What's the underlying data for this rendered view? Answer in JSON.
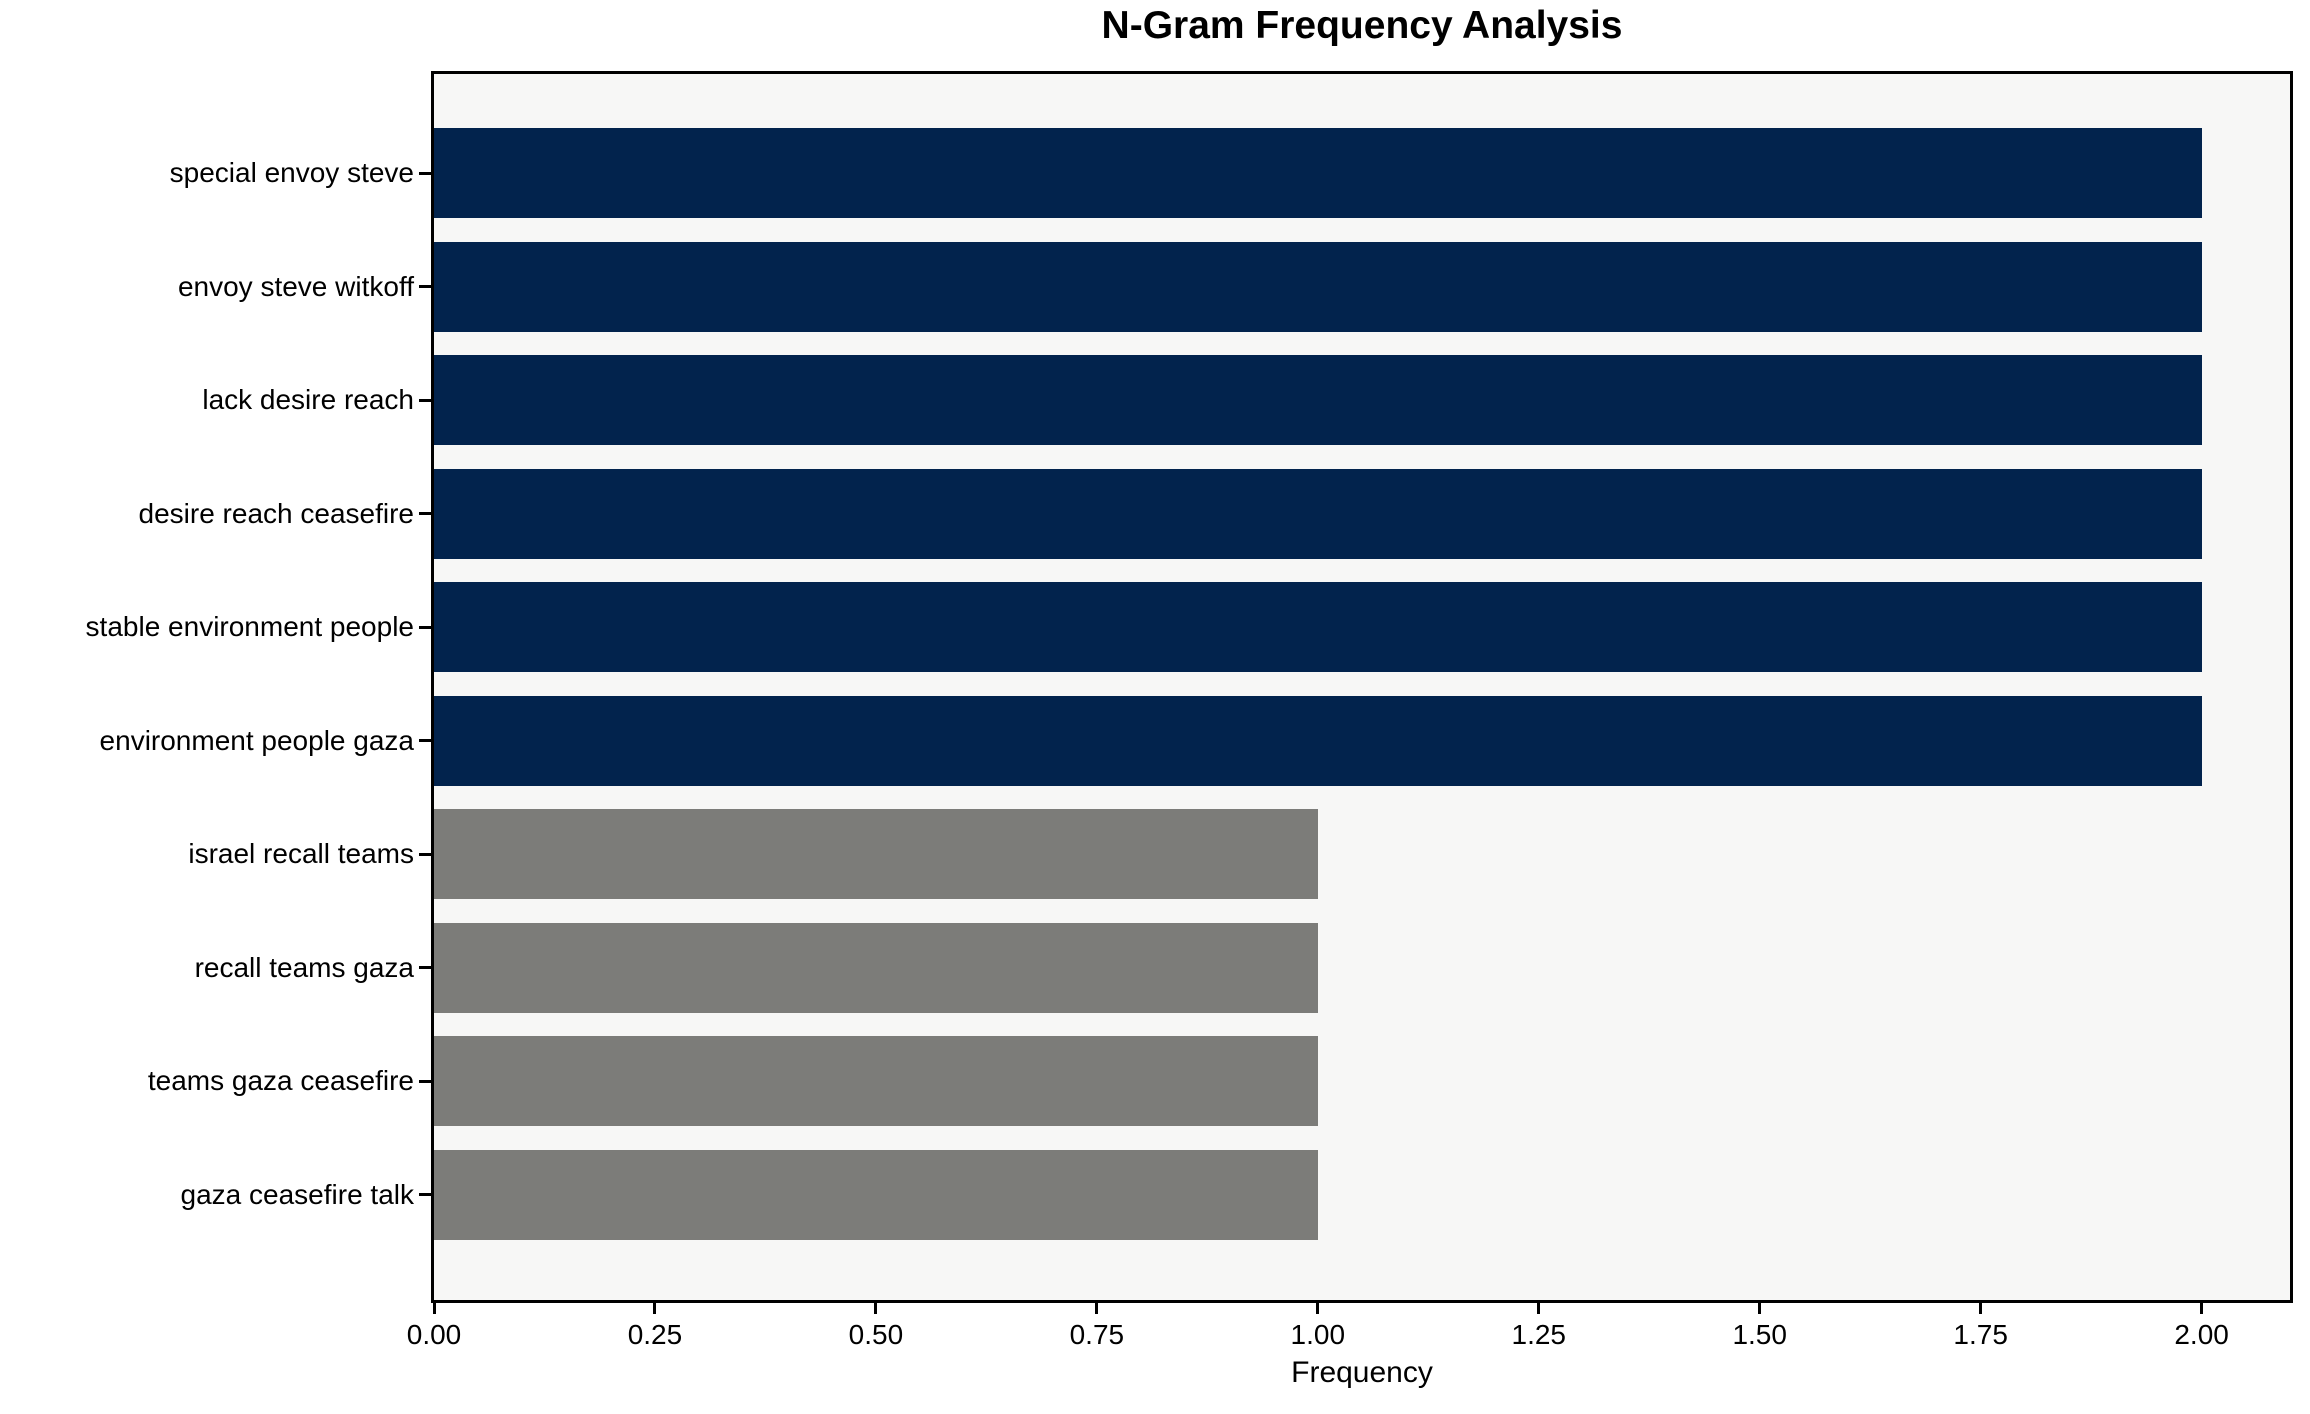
{
  "figure": {
    "background": "#ffffff"
  },
  "chart_data": {
    "type": "bar",
    "orientation": "horizontal",
    "title": "N-Gram Frequency Analysis",
    "xlabel": "Frequency",
    "ylabel": "",
    "categories": [
      "special envoy steve",
      "envoy steve witkoff",
      "lack desire reach",
      "desire reach ceasefire",
      "stable environment people",
      "environment people gaza",
      "israel recall teams",
      "recall teams gaza",
      "teams gaza ceasefire",
      "gaza ceasefire talk"
    ],
    "values": [
      2,
      2,
      2,
      2,
      2,
      2,
      1,
      1,
      1,
      1
    ],
    "bar_colors": [
      "#02234d",
      "#02234d",
      "#02234d",
      "#02234d",
      "#02234d",
      "#02234d",
      "#7c7c79",
      "#7c7c79",
      "#7c7c79",
      "#7c7c79"
    ],
    "xlim": [
      0,
      2.1
    ],
    "xtick_values": [
      0,
      0.25,
      0.5,
      0.75,
      1.0,
      1.25,
      1.5,
      1.75,
      2.0
    ],
    "xtick_labels": [
      "0.00",
      "0.25",
      "0.50",
      "0.75",
      "1.00",
      "1.25",
      "1.50",
      "1.75",
      "2.00"
    ],
    "grid": false,
    "legend": false,
    "colors": {
      "high_frequency_bar": "#02234d",
      "low_frequency_bar": "#7c7c79",
      "plot_background": "#f7f7f6",
      "spine": "#000000",
      "text": "#000000"
    }
  }
}
